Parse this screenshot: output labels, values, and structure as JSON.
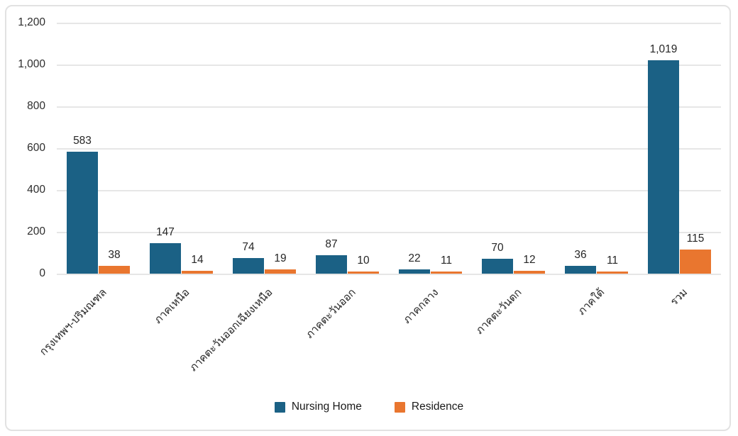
{
  "chart_data": {
    "type": "bar",
    "title": "",
    "xlabel": "",
    "ylabel": "",
    "categories": [
      "กรุงเทพฯ-ปริมณฑล",
      "ภาคเหนือ",
      "ภาคตะวันออกเฉียงเหนือ",
      "ภาคตะวันออก",
      "ภาคกลาง",
      "ภาคตะวันตก",
      "ภาคใต้",
      "รวม"
    ],
    "series": [
      {
        "name": "Nursing Home",
        "color": "#1b6185",
        "values": [
          583,
          147,
          74,
          87,
          22,
          70,
          36,
          1019
        ]
      },
      {
        "name": "Residence",
        "color": "#e9762f",
        "values": [
          38,
          14,
          19,
          10,
          11,
          12,
          11,
          115
        ]
      }
    ],
    "value_labels": {
      "Nursing Home": [
        "583",
        "147",
        "74",
        "87",
        "22",
        "70",
        "36",
        "1,019"
      ],
      "Residence": [
        "38",
        "14",
        "19",
        "10",
        "11",
        "12",
        "11",
        "115"
      ]
    },
    "y_ticks": [
      "1,200",
      "1,000",
      "800",
      "600",
      "400",
      "200",
      "0"
    ],
    "ylim": [
      0,
      1200
    ],
    "grid": true,
    "legend_position": "bottom"
  },
  "colors": {
    "grid": "#e6e6e6",
    "frame": "#e2e2e2",
    "text": "#262626",
    "background": "#ffffff"
  }
}
